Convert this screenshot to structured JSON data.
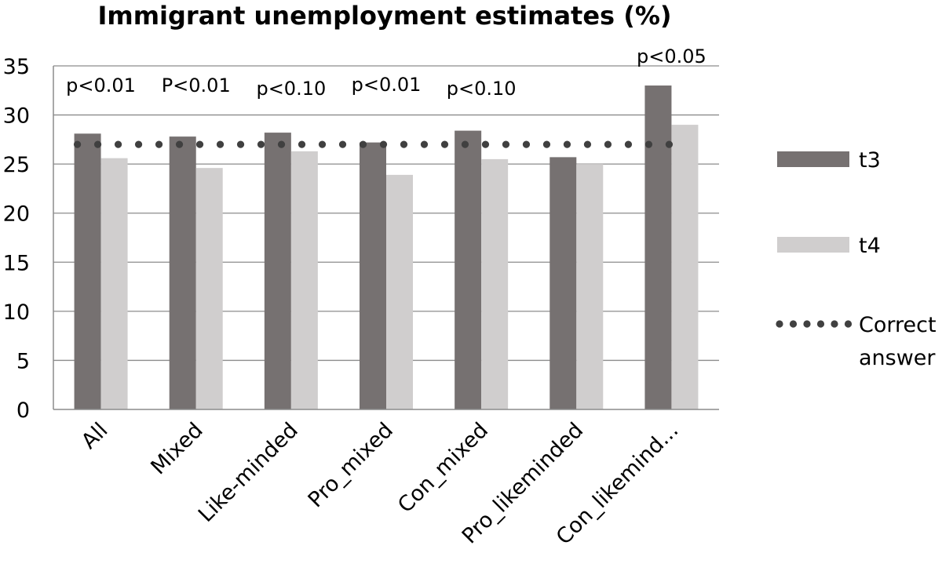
{
  "chart_data": {
    "type": "bar",
    "title": "Immigrant unemployment estimates (%)",
    "categories": [
      "All",
      "Mixed",
      "Like-minded",
      "Pro_mixed",
      "Con_mixed",
      "Pro_likeminded",
      "Con_likemind..."
    ],
    "series": [
      {
        "name": "t3",
        "color": "#767171",
        "values": [
          28.1,
          27.8,
          28.2,
          27.2,
          28.4,
          25.7,
          33.0
        ]
      },
      {
        "name": "t4",
        "color": "#d0cece",
        "values": [
          25.6,
          24.6,
          26.3,
          23.9,
          25.5,
          25.0,
          29.0
        ]
      }
    ],
    "reference_line": {
      "name": "Correct answer",
      "label_lines": [
        "Correct",
        "answer"
      ],
      "value": 27,
      "style": "dotted",
      "color": "#404040"
    },
    "annotations": [
      "p<0.01",
      "P<0.01",
      "p<0.10",
      "p<0.01",
      "p<0.10",
      "",
      "p<0.05"
    ],
    "ylim": [
      0,
      35
    ],
    "yticks": [
      0,
      5,
      10,
      15,
      20,
      25,
      30,
      35
    ],
    "grid": true,
    "legend_position": "right",
    "xlabel": "",
    "ylabel": ""
  }
}
